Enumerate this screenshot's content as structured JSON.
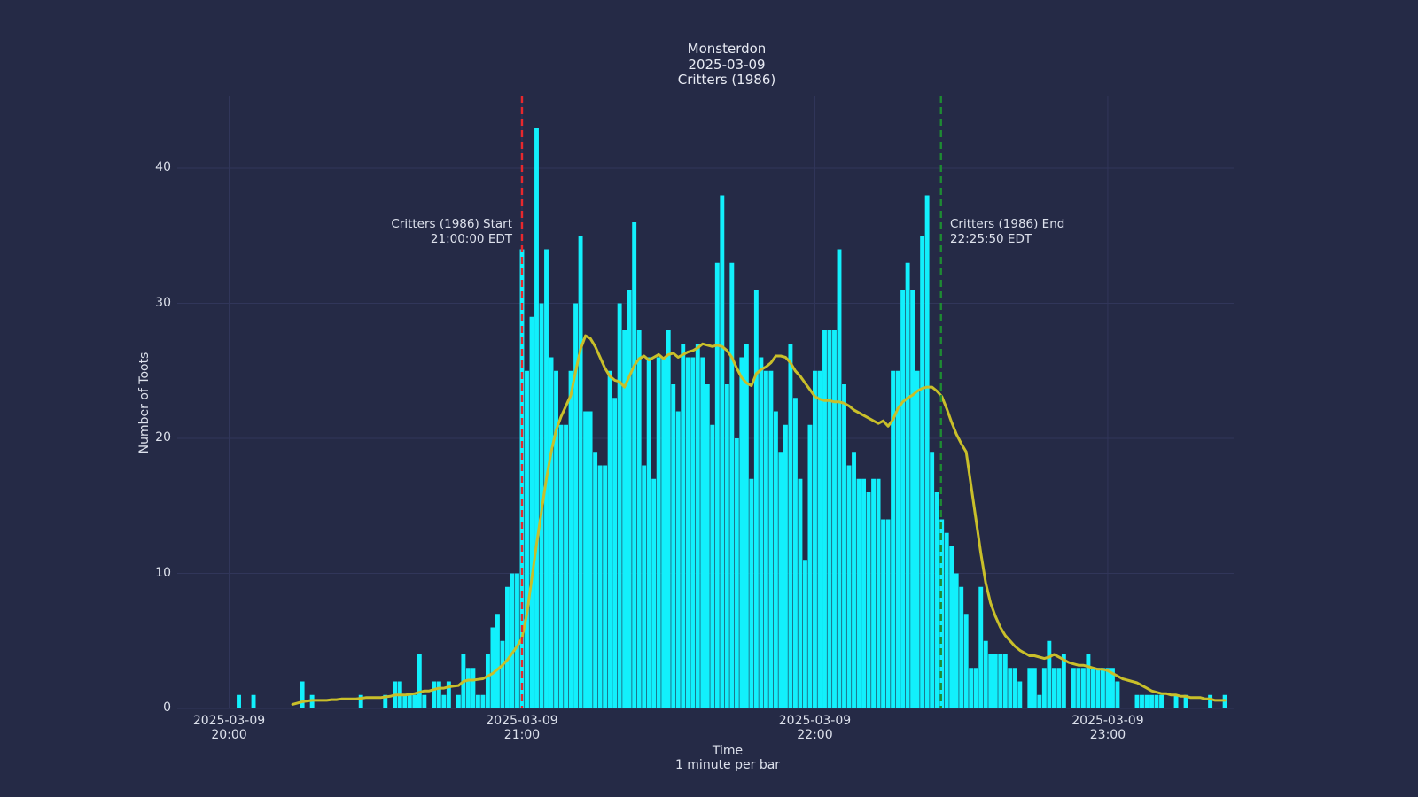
{
  "title": {
    "line1": "Monsterdon",
    "line2": "2025-03-09",
    "line3": "Critters (1986)"
  },
  "axes": {
    "y_label": "Number of Toots",
    "x_label_line1": "Time",
    "x_label_line2": "1 minute per bar"
  },
  "colors": {
    "background": "#252a46",
    "grid": "#31365a",
    "bar": "#12f0fc",
    "trend_line": "#c9bf2a",
    "start_line": "#e8282d",
    "end_line": "#1e8b33",
    "text": "#dde1ec"
  },
  "chart_data": {
    "type": "bar",
    "title": "Monsterdon 2025-03-09 Critters (1986)",
    "xlabel": "Time (1 minute per bar)",
    "ylabel": "Number of Toots",
    "start_time": "2025-03-09 20:00 EDT",
    "interval_minutes": 1,
    "grid": true,
    "legend_position": "none",
    "ylim": [
      0,
      45.4
    ],
    "y_ticks": [
      0,
      10,
      20,
      30,
      40
    ],
    "x_ticks": [
      {
        "minute": 0,
        "line1": "2025-03-09",
        "line2": "20:00"
      },
      {
        "minute": 60,
        "line1": "2025-03-09",
        "line2": "21:00"
      },
      {
        "minute": 120,
        "line1": "2025-03-09",
        "line2": "22:00"
      },
      {
        "minute": 180,
        "line1": "2025-03-09",
        "line2": "23:00"
      }
    ],
    "series": [
      {
        "name": "toots_per_minute",
        "type": "bar",
        "color": "#12f0fc",
        "values": [
          0,
          0,
          1,
          0,
          0,
          1,
          0,
          0,
          0,
          0,
          0,
          0,
          0,
          0,
          0,
          2,
          0,
          1,
          0,
          0,
          0,
          0,
          0,
          0,
          0,
          0,
          0,
          1,
          0,
          0,
          0,
          0,
          1,
          0,
          2,
          2,
          1,
          1,
          1,
          4,
          1,
          0,
          2,
          2,
          1,
          2,
          0,
          1,
          4,
          3,
          3,
          1,
          1,
          4,
          6,
          7,
          5,
          9,
          10,
          10,
          34,
          25,
          29,
          43,
          30,
          34,
          26,
          25,
          21,
          21,
          25,
          30,
          35,
          22,
          22,
          19,
          18,
          18,
          25,
          23,
          30,
          28,
          31,
          36,
          28,
          18,
          26,
          17,
          26,
          26,
          28,
          24,
          22,
          27,
          26,
          26,
          27,
          26,
          24,
          21,
          33,
          38,
          24,
          33,
          20,
          26,
          27,
          17,
          31,
          26,
          25,
          25,
          22,
          19,
          21,
          27,
          23,
          17,
          11,
          21,
          25,
          25,
          28,
          28,
          28,
          34,
          24,
          18,
          19,
          17,
          17,
          16,
          17,
          17,
          14,
          14,
          25,
          25,
          31,
          33,
          31,
          25,
          35,
          38,
          19,
          16,
          14,
          13,
          12,
          10,
          9,
          7,
          3,
          3,
          9,
          5,
          4,
          4,
          4,
          4,
          3,
          3,
          2,
          0,
          3,
          3,
          1,
          3,
          5,
          3,
          3,
          4,
          0,
          3,
          3,
          3,
          4,
          3,
          3,
          3,
          3,
          3,
          2,
          0,
          0,
          0,
          1,
          1,
          1,
          1,
          1,
          1,
          0,
          0,
          1,
          0,
          1,
          0,
          0,
          0,
          0,
          1,
          0,
          0,
          1,
          0
        ]
      },
      {
        "name": "smoothed_trend",
        "type": "line",
        "color": "#c9bf2a",
        "values": [
          null,
          null,
          null,
          null,
          null,
          null,
          null,
          null,
          null,
          null,
          null,
          null,
          null,
          0.3,
          0.4,
          0.5,
          0.55,
          0.6,
          0.6,
          0.6,
          0.6,
          0.65,
          0.65,
          0.7,
          0.7,
          0.7,
          0.7,
          0.75,
          0.8,
          0.8,
          0.8,
          0.8,
          0.85,
          0.9,
          1.0,
          1.0,
          1.0,
          1.05,
          1.1,
          1.2,
          1.3,
          1.3,
          1.4,
          1.5,
          1.5,
          1.6,
          1.65,
          1.7,
          2.0,
          2.1,
          2.1,
          2.15,
          2.2,
          2.4,
          2.6,
          2.9,
          3.2,
          3.6,
          4.1,
          4.6,
          5.2,
          7.0,
          9.6,
          12.2,
          14.6,
          17.0,
          19.0,
          20.6,
          21.6,
          22.4,
          23.2,
          25.0,
          26.6,
          27.6,
          27.4,
          26.8,
          26.0,
          25.2,
          24.6,
          24.3,
          24.2,
          23.8,
          24.6,
          25.4,
          25.9,
          26.1,
          25.8,
          26.0,
          26.2,
          25.9,
          26.2,
          26.3,
          26.0,
          26.2,
          26.4,
          26.5,
          26.7,
          27.0,
          26.9,
          26.8,
          26.9,
          26.8,
          26.5,
          26.0,
          25.2,
          24.5,
          24.1,
          23.9,
          24.8,
          25.1,
          25.3,
          25.6,
          26.1,
          26.1,
          26.0,
          25.6,
          25.0,
          24.6,
          24.1,
          23.6,
          23.1,
          22.9,
          22.8,
          22.8,
          22.7,
          22.7,
          22.6,
          22.4,
          22.1,
          21.9,
          21.7,
          21.5,
          21.3,
          21.1,
          21.3,
          20.9,
          21.4,
          22.2,
          22.7,
          23.0,
          23.2,
          23.5,
          23.7,
          23.8,
          23.8,
          23.5,
          23.1,
          22.2,
          21.2,
          20.3,
          19.6,
          19.0,
          16.5,
          14.0,
          11.5,
          9.3,
          7.8,
          6.8,
          6.0,
          5.4,
          5.0,
          4.6,
          4.3,
          4.1,
          3.9,
          3.9,
          3.8,
          3.7,
          3.8,
          4.0,
          3.8,
          3.6,
          3.4,
          3.3,
          3.2,
          3.2,
          3.1,
          3.0,
          2.9,
          2.9,
          2.8,
          2.6,
          2.4,
          2.2,
          2.1,
          2.0,
          1.9,
          1.7,
          1.5,
          1.3,
          1.2,
          1.1,
          1.1,
          1.0,
          1.0,
          0.9,
          0.9,
          0.8,
          0.8,
          0.8,
          0.7,
          0.7,
          0.6,
          0.6,
          0.6,
          null
        ]
      }
    ],
    "annotations": [
      {
        "name": "start",
        "label_line1": "Critters (1986) Start",
        "label_line2": "21:00:00 EDT",
        "x_minute": 60,
        "color": "#e8282d",
        "align": "right"
      },
      {
        "name": "end",
        "label_line1": "Critters (1986) End",
        "label_line2": "22:25:50 EDT",
        "x_minute": 145.83,
        "color": "#1e8b33",
        "align": "left"
      }
    ]
  }
}
